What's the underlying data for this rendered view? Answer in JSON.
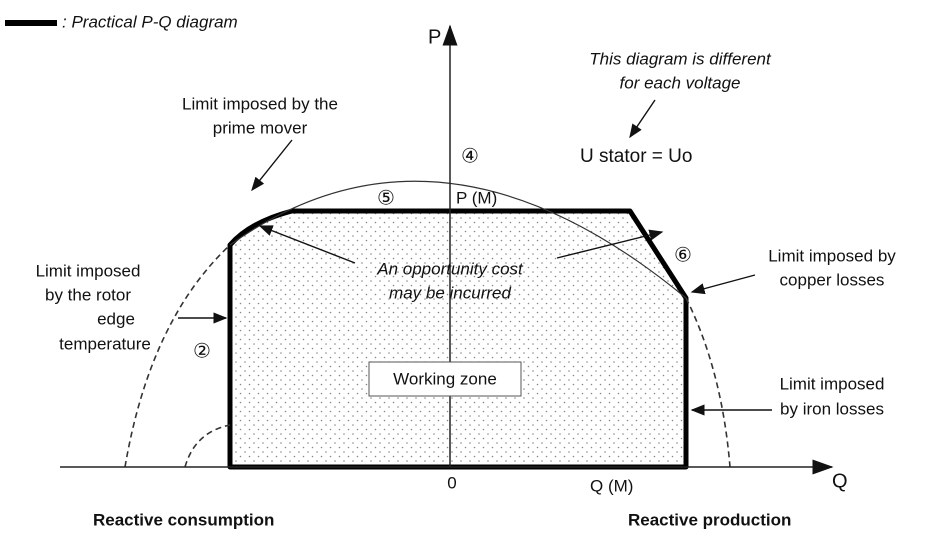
{
  "legend": ": Practical P-Q diagram",
  "axes": {
    "p": "P",
    "q": "Q",
    "origin": "0",
    "p_max": "P (M)",
    "q_max": "Q  (M)"
  },
  "voltage_note": [
    "This diagram is different",
    "for each voltage"
  ],
  "stator": "U stator = Uo",
  "prime_mover": [
    "Limit imposed by the",
    "prime mover"
  ],
  "copper": [
    "Limit imposed by",
    "copper losses"
  ],
  "rotor": [
    "Limit imposed",
    "by the rotor",
    "edge",
    "temperature"
  ],
  "opportunity": [
    "An opportunity cost",
    "may be incurred"
  ],
  "working_zone": "Working zone",
  "iron": [
    "Limit imposed",
    "by iron losses"
  ],
  "markers": [
    "④",
    "⑤",
    "⑥",
    "②"
  ],
  "consumption": "Reactive consumption",
  "production": "Reactive production"
}
